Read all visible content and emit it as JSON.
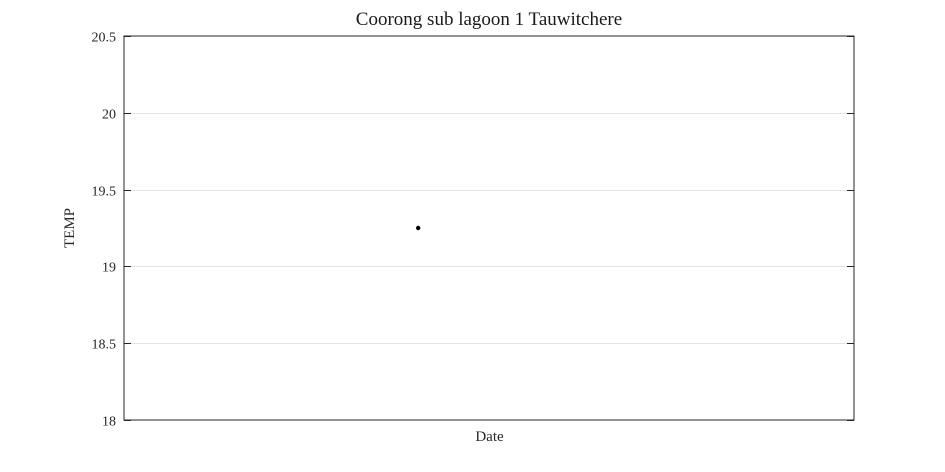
{
  "chart_data": {
    "type": "scatter",
    "title": "Coorong sub lagoon 1 Tauwitchere",
    "xlabel": "Date",
    "ylabel": "TEMP",
    "ylim": [
      18,
      20.5
    ],
    "yticks": [
      18,
      18.5,
      19,
      19.5,
      20,
      20.5
    ],
    "ytick_labels": [
      "18",
      "18.5",
      "19",
      "19.5",
      "20",
      "20.5"
    ],
    "grid": "horizontal",
    "series": [
      {
        "values": [
          19.25
        ],
        "color": "#000000"
      }
    ]
  }
}
